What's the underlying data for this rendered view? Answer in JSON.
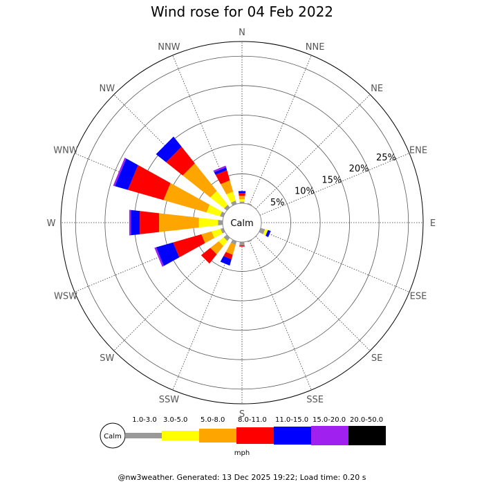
{
  "chart_data": {
    "type": "wind-rose",
    "title": "Wind rose for 04 Feb 2022",
    "directions": [
      "N",
      "NNE",
      "NE",
      "ENE",
      "E",
      "ESE",
      "SE",
      "SSE",
      "S",
      "SSW",
      "SW",
      "WSW",
      "W",
      "WNW",
      "NW",
      "NNW"
    ],
    "radial_ticks": [
      "5%",
      "10%",
      "15%",
      "20%",
      "25%"
    ],
    "radial_max_percent": 27.5,
    "calm_label": "Calm",
    "speed_unit": "mph",
    "speed_bins": [
      {
        "label": "1.0-3.0",
        "color": "#999999"
      },
      {
        "label": "3.0-5.0",
        "color": "#ffff00"
      },
      {
        "label": "5.0-8.0",
        "color": "#ffa500"
      },
      {
        "label": "8.0-11.0",
        "color": "#ff0000"
      },
      {
        "label": "11.0-15.0",
        "color": "#0000ff"
      },
      {
        "label": "15.0-20.0",
        "color": "#a020f0"
      },
      {
        "label": "20.0-50.0",
        "color": "#000000"
      }
    ],
    "series": [
      {
        "direction": "N",
        "values": [
          0.3,
          0.4,
          0.6,
          0.5,
          0.3,
          0,
          0
        ]
      },
      {
        "direction": "NNE",
        "values": [
          0.2,
          0,
          0,
          0,
          0,
          0,
          0
        ]
      },
      {
        "direction": "NE",
        "values": [
          0,
          0,
          0,
          0,
          0,
          0,
          0
        ]
      },
      {
        "direction": "ENE",
        "values": [
          0,
          0,
          0,
          0,
          0,
          0,
          0
        ]
      },
      {
        "direction": "E",
        "values": [
          0,
          0,
          0,
          0,
          0,
          0,
          0
        ]
      },
      {
        "direction": "ESE",
        "values": [
          0.8,
          0.5,
          0,
          0,
          0.5,
          0,
          0
        ]
      },
      {
        "direction": "SE",
        "values": [
          0,
          0,
          0,
          0,
          0,
          0,
          0
        ]
      },
      {
        "direction": "SSE",
        "values": [
          0.2,
          0,
          0,
          0,
          0,
          0,
          0
        ]
      },
      {
        "direction": "S",
        "values": [
          0.6,
          0,
          0,
          0.2,
          0,
          0,
          0
        ]
      },
      {
        "direction": "SSW",
        "values": [
          0.6,
          0,
          1.8,
          0.8,
          1.1,
          0,
          0
        ]
      },
      {
        "direction": "SW",
        "values": [
          0.7,
          1.1,
          1.8,
          2.0,
          0,
          0,
          0
        ]
      },
      {
        "direction": "WSW",
        "values": [
          0.5,
          1.6,
          1.8,
          5.0,
          3.0,
          0.3,
          0
        ]
      },
      {
        "direction": "W",
        "values": [
          0.8,
          3.3,
          6.8,
          3.3,
          1.5,
          0.3,
          0
        ]
      },
      {
        "direction": "WNW",
        "values": [
          0.6,
          2.4,
          7.6,
          6.3,
          2.3,
          0.3,
          0
        ]
      },
      {
        "direction": "NW",
        "values": [
          0.6,
          3.0,
          6.0,
          3.6,
          2.2,
          0,
          0
        ]
      },
      {
        "direction": "NNW",
        "values": [
          0.6,
          1.6,
          2.0,
          1.8,
          0.5,
          0.3,
          0
        ]
      }
    ]
  },
  "footer": "@nw3weather. Generated: 13 Dec 2025 19:22; Load time: 0.20 s"
}
